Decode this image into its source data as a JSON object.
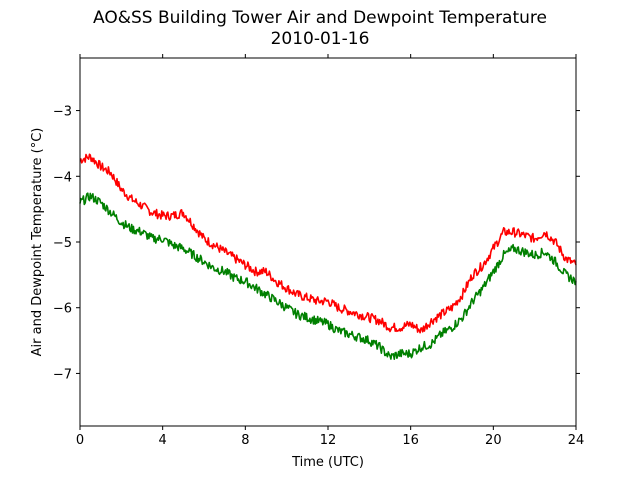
{
  "chart_data": {
    "type": "line",
    "title": "AO&SS Building Tower Air and Dewpoint Temperature",
    "subtitle": "2010-01-16",
    "xlabel": "Time (UTC)",
    "ylabel": "Air and Dewpoint Temperature (°C)",
    "xlim": [
      0,
      24
    ],
    "ylim": [
      -7.8,
      -2.2
    ],
    "xticks": [
      0,
      4,
      8,
      12,
      16,
      20,
      24
    ],
    "yticks": [
      -7,
      -6,
      -5,
      -4,
      -3
    ],
    "ytick_labels": [
      "−7",
      "−6",
      "−5",
      "−4",
      "−3"
    ],
    "grid": false,
    "legend": "none",
    "x": [
      0,
      0.5,
      1,
      1.5,
      2,
      2.5,
      3,
      3.5,
      4,
      4.5,
      5,
      5.5,
      6,
      6.5,
      7,
      7.5,
      8,
      8.5,
      9,
      9.5,
      10,
      10.5,
      11,
      11.5,
      12,
      12.5,
      13,
      13.5,
      14,
      14.5,
      15,
      15.5,
      16,
      16.5,
      17,
      17.5,
      18,
      18.5,
      19,
      19.5,
      20,
      20.5,
      21,
      21.5,
      22,
      22.5,
      23,
      23.5,
      24
    ],
    "series": [
      {
        "color": "#ff0000",
        "values": [
          -3.75,
          -3.7,
          -3.85,
          -3.95,
          -4.2,
          -4.35,
          -4.45,
          -4.55,
          -4.6,
          -4.6,
          -4.55,
          -4.75,
          -4.95,
          -5.05,
          -5.15,
          -5.25,
          -5.35,
          -5.45,
          -5.45,
          -5.6,
          -5.7,
          -5.8,
          -5.85,
          -5.9,
          -5.9,
          -6.0,
          -6.05,
          -6.1,
          -6.15,
          -6.2,
          -6.3,
          -6.3,
          -6.25,
          -6.35,
          -6.2,
          -6.1,
          -6.0,
          -5.8,
          -5.5,
          -5.35,
          -5.1,
          -4.85,
          -4.85,
          -4.9,
          -4.95,
          -4.85,
          -5.0,
          -5.25,
          -5.35
        ]
      },
      {
        "color": "#008000",
        "values": [
          -4.4,
          -4.3,
          -4.4,
          -4.55,
          -4.7,
          -4.8,
          -4.85,
          -4.95,
          -4.95,
          -5.05,
          -5.1,
          -5.2,
          -5.3,
          -5.4,
          -5.45,
          -5.55,
          -5.6,
          -5.7,
          -5.8,
          -5.9,
          -6.0,
          -6.1,
          -6.15,
          -6.2,
          -6.25,
          -6.35,
          -6.4,
          -6.45,
          -6.5,
          -6.6,
          -6.75,
          -6.7,
          -6.7,
          -6.6,
          -6.55,
          -6.4,
          -6.3,
          -6.15,
          -5.9,
          -5.7,
          -5.45,
          -5.2,
          -5.1,
          -5.15,
          -5.2,
          -5.15,
          -5.3,
          -5.5,
          -5.6
        ]
      }
    ]
  }
}
